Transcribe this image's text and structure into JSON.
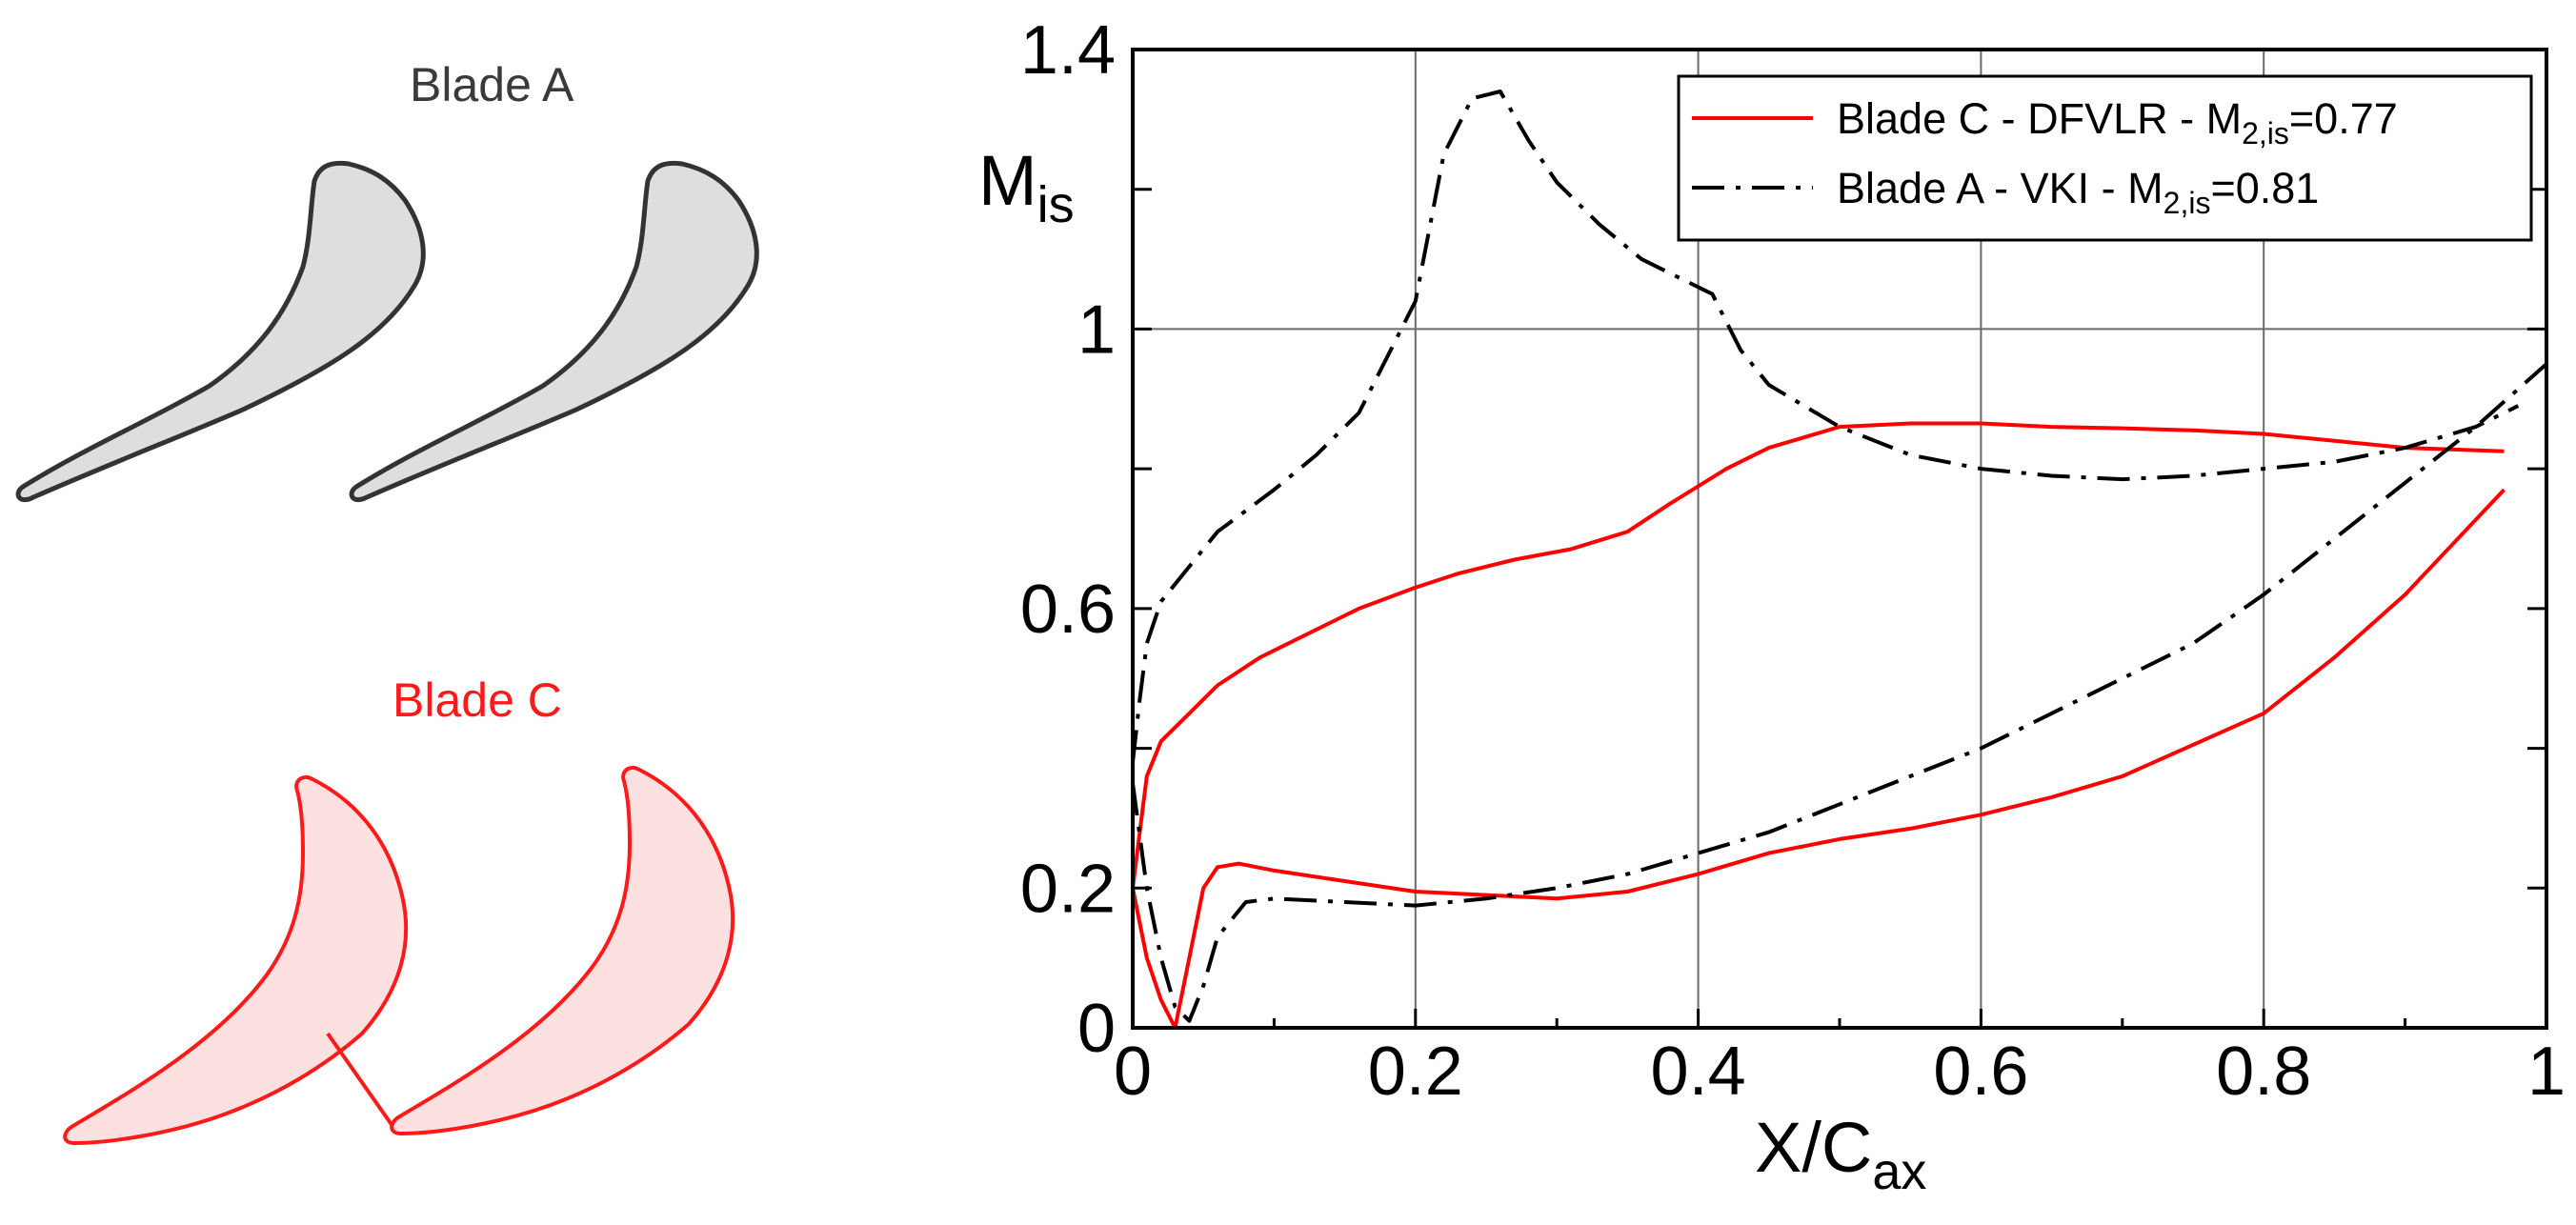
{
  "blade_labels": {
    "a": "Blade A",
    "c": "Blade C"
  },
  "colors": {
    "red": "#ff0000",
    "black": "#000000",
    "blade_a_fill": "#dedede",
    "blade_a_stroke": "#333333",
    "blade_c_fill": "#fde0e0",
    "blade_c_stroke": "#ff1a1a"
  },
  "chart_data": {
    "type": "line",
    "title": "",
    "xlabel": "X/C",
    "xlabel_sub": "ax",
    "ylabel": "M",
    "ylabel_sub": "is",
    "xlim": [
      0,
      1
    ],
    "ylim": [
      0,
      1.4
    ],
    "x_ticks": [
      0,
      0.2,
      0.4,
      0.6,
      0.8,
      1
    ],
    "x_tick_labels": [
      "0",
      "0.2",
      "0.4",
      "0.6",
      "0.8",
      "1"
    ],
    "y_ticks": [
      0,
      0.2,
      0.6,
      1,
      1.4
    ],
    "y_tick_labels": [
      "0",
      "0.2",
      "0.6",
      "1",
      "1.4"
    ],
    "grid": true,
    "legend_position": "top-right",
    "series": [
      {
        "name": "Blade C - DFVLR - M",
        "name_sub": "2,is",
        "name_suffix": "=0.77",
        "color": "#ff0000",
        "dash": "solid",
        "curves": [
          {
            "x": [
              0.0,
              0.01,
              0.02,
              0.04,
              0.06,
              0.09,
              0.12,
              0.16,
              0.2,
              0.23,
              0.27,
              0.31,
              0.35,
              0.38,
              0.42,
              0.45,
              0.5,
              0.55,
              0.6,
              0.65,
              0.7,
              0.75,
              0.8,
              0.85,
              0.9,
              0.97
            ],
            "y": [
              0.2,
              0.36,
              0.41,
              0.45,
              0.49,
              0.53,
              0.56,
              0.6,
              0.63,
              0.65,
              0.67,
              0.685,
              0.71,
              0.75,
              0.8,
              0.83,
              0.86,
              0.865,
              0.865,
              0.86,
              0.858,
              0.855,
              0.85,
              0.84,
              0.83,
              0.825
            ]
          },
          {
            "x": [
              0.0,
              0.005,
              0.01,
              0.02,
              0.03,
              0.04,
              0.05,
              0.06,
              0.075,
              0.1,
              0.15,
              0.2,
              0.25,
              0.3,
              0.35,
              0.4,
              0.45,
              0.5,
              0.55,
              0.6,
              0.65,
              0.7,
              0.75,
              0.8,
              0.85,
              0.9,
              0.97
            ],
            "y": [
              0.2,
              0.15,
              0.1,
              0.04,
              0.0,
              0.1,
              0.2,
              0.23,
              0.235,
              0.225,
              0.21,
              0.195,
              0.19,
              0.185,
              0.195,
              0.22,
              0.25,
              0.27,
              0.285,
              0.305,
              0.33,
              0.36,
              0.405,
              0.45,
              0.53,
              0.62,
              0.77
            ]
          }
        ]
      },
      {
        "name": "Blade A - VKI - M",
        "name_sub": "2,is",
        "name_suffix": "=0.81",
        "color": "#000000",
        "dash": "dashdot",
        "curves": [
          {
            "x": [
              0.0,
              0.005,
              0.01,
              0.02,
              0.04,
              0.06,
              0.08,
              0.1,
              0.13,
              0.16,
              0.18,
              0.2,
              0.22,
              0.24,
              0.26,
              0.28,
              0.3,
              0.33,
              0.36,
              0.39,
              0.41,
              0.43,
              0.45,
              0.5,
              0.55,
              0.6,
              0.65,
              0.7,
              0.75,
              0.8,
              0.85,
              0.9,
              0.95,
              0.98
            ],
            "y": [
              0.38,
              0.47,
              0.55,
              0.61,
              0.66,
              0.71,
              0.74,
              0.77,
              0.82,
              0.88,
              0.96,
              1.04,
              1.25,
              1.33,
              1.34,
              1.27,
              1.21,
              1.15,
              1.1,
              1.07,
              1.05,
              0.97,
              0.92,
              0.86,
              0.82,
              0.8,
              0.79,
              0.785,
              0.79,
              0.8,
              0.81,
              0.83,
              0.86,
              0.89
            ]
          },
          {
            "x": [
              0.0,
              0.01,
              0.02,
              0.03,
              0.04,
              0.05,
              0.06,
              0.08,
              0.1,
              0.15,
              0.2,
              0.25,
              0.3,
              0.35,
              0.4,
              0.45,
              0.5,
              0.55,
              0.6,
              0.65,
              0.7,
              0.75,
              0.8,
              0.85,
              0.9,
              0.95,
              1.0
            ],
            "y": [
              0.35,
              0.2,
              0.1,
              0.03,
              0.01,
              0.06,
              0.13,
              0.18,
              0.185,
              0.18,
              0.175,
              0.185,
              0.2,
              0.22,
              0.25,
              0.28,
              0.32,
              0.36,
              0.4,
              0.45,
              0.5,
              0.55,
              0.62,
              0.7,
              0.78,
              0.86,
              0.95
            ]
          }
        ]
      }
    ]
  }
}
